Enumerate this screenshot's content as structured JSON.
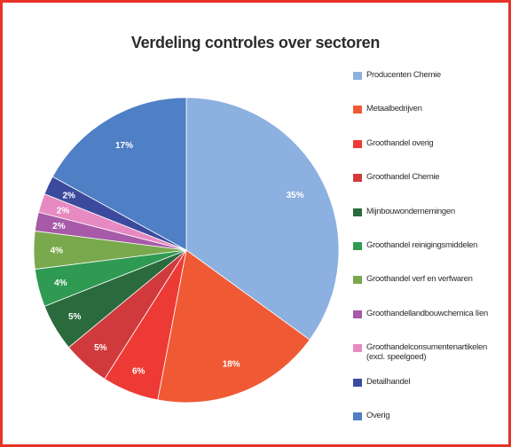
{
  "chart_data": {
    "type": "pie",
    "title": "Verdeling controles over sectoren",
    "slices": [
      {
        "label": "Producenten Chemie",
        "value": 35,
        "display": "35%",
        "color": "#8cb0df"
      },
      {
        "label": "Metaalbedrijven",
        "value": 18,
        "display": "18%",
        "color": "#ef5a35"
      },
      {
        "label": "Groothandel overig",
        "value": 6,
        "display": "6%",
        "color": "#ee3a34"
      },
      {
        "label": "Groothandel Chemie",
        "value": 5,
        "display": "5%",
        "color": "#d13a3d"
      },
      {
        "label": "Mijnbouwondernemingen",
        "value": 5,
        "display": "5%",
        "color": "#2a6a3d"
      },
      {
        "label": "Groothandel reinigingsmiddelen",
        "value": 4,
        "display": "4%",
        "color": "#2f9a52"
      },
      {
        "label": "Groothandel verf en verfwaren",
        "value": 4,
        "display": "4%",
        "color": "#7aa84c"
      },
      {
        "label": "Groothandellandbouwchemica lïen",
        "value": 2,
        "display": "2%",
        "color": "#a65aa7"
      },
      {
        "label": "Groothandelconsumentenartikelen\n(excl. speelgoed)",
        "value": 2,
        "display": "2%",
        "color": "#e88ac2"
      },
      {
        "label": "Detailhandel",
        "value": 2,
        "display": "2%",
        "color": "#3c4a9e"
      },
      {
        "label": "Overig",
        "value": 17,
        "display": "17%",
        "color": "#4f7fc4"
      }
    ],
    "legend_position": "right"
  }
}
